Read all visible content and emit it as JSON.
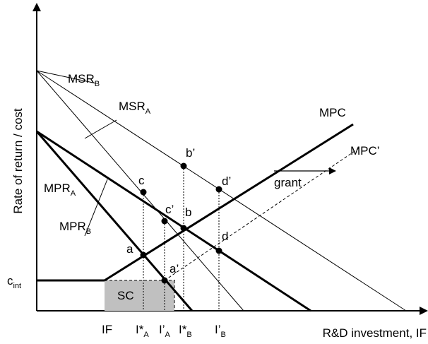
{
  "axes": {
    "y_label": "Rate of return / cost",
    "x_label": "R&D investment, IF"
  },
  "curves": {
    "msr_b": {
      "base": "MSR",
      "sub": "B"
    },
    "msr_a": {
      "base": "MSR",
      "sub": "A"
    },
    "mpr_a": {
      "base": "MPR",
      "sub": "A"
    },
    "mpr_b": {
      "base": "MPR",
      "sub": "B"
    },
    "mpc": "MPC",
    "mpc_prime": "MPC’"
  },
  "annotations": {
    "grant": "grant",
    "sc": "SC",
    "c_int": {
      "base": "c",
      "sub": "int"
    }
  },
  "points": {
    "a": "a",
    "a_prime": "a’",
    "b": "b",
    "b_prime": "b’",
    "c": "c",
    "c_prime": "c’",
    "d": "d",
    "d_prime": "d’"
  },
  "x_ticks": {
    "if": "IF",
    "i_star_a": {
      "base": "I*",
      "sub": "A"
    },
    "i_prime_a": {
      "base": "I’",
      "sub": "A"
    },
    "i_star_b": {
      "base": "I*",
      "sub": "B"
    },
    "i_prime_b": {
      "base": "I’",
      "sub": "B"
    }
  }
}
